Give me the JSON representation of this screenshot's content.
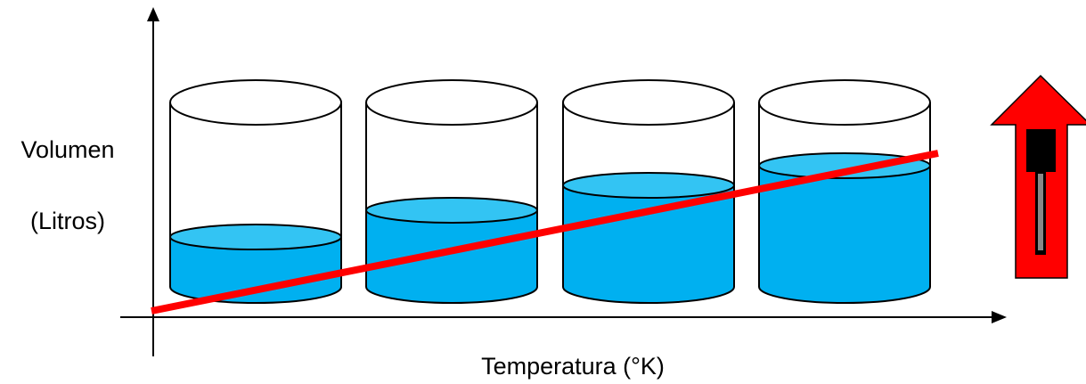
{
  "labels": {
    "y_axis_line1": "Volumen",
    "y_axis_line2": "(Litros)",
    "x_axis": "Temperatura (°K)"
  }
}
